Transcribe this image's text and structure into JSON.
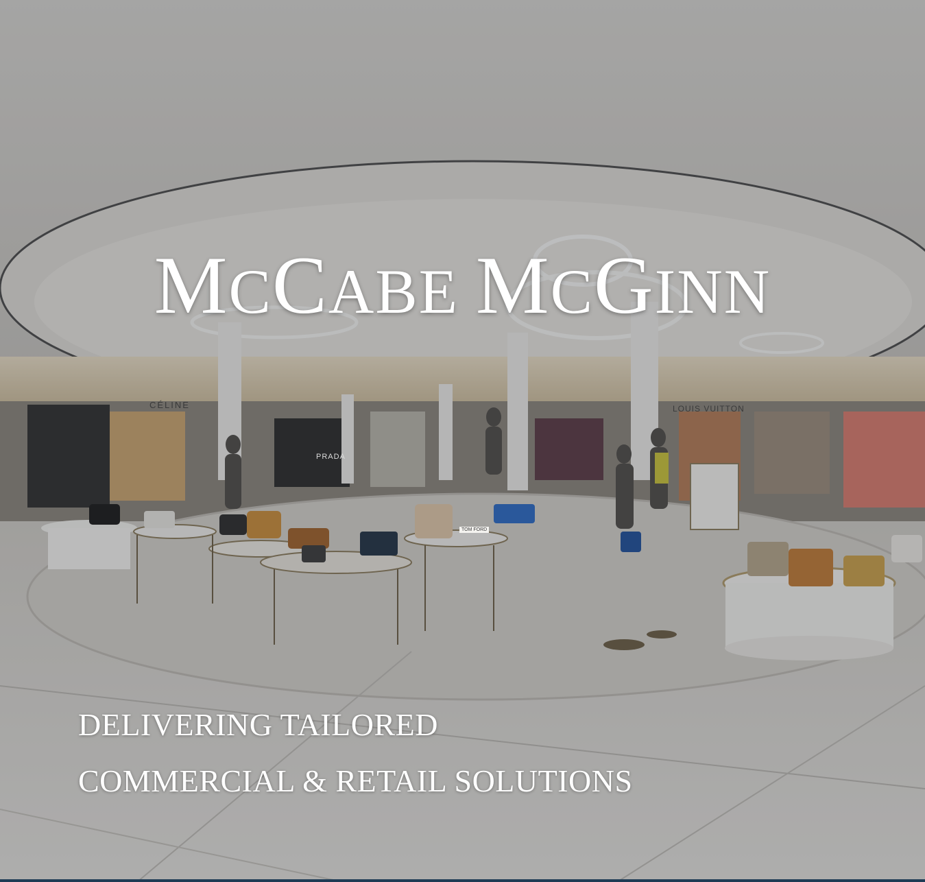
{
  "brand": {
    "title_parts": [
      "M",
      "C",
      "C",
      "ABE ",
      "M",
      "C",
      "G",
      "INN"
    ],
    "title": "McCabe McGinn"
  },
  "tagline": {
    "line1": "DELIVERING TAILORED",
    "line2": "COMMERCIAL & RETAIL SOLUTIONS"
  },
  "store_signs": {
    "celine": "CÉLINE",
    "louis_vuitton": "LOUIS VUITTON",
    "prada": "PRADA",
    "tom_ford": "TOM FORD"
  },
  "colors": {
    "overlay": "#2a2e34",
    "text": "#ffffff",
    "rule": "#1f3b55"
  }
}
